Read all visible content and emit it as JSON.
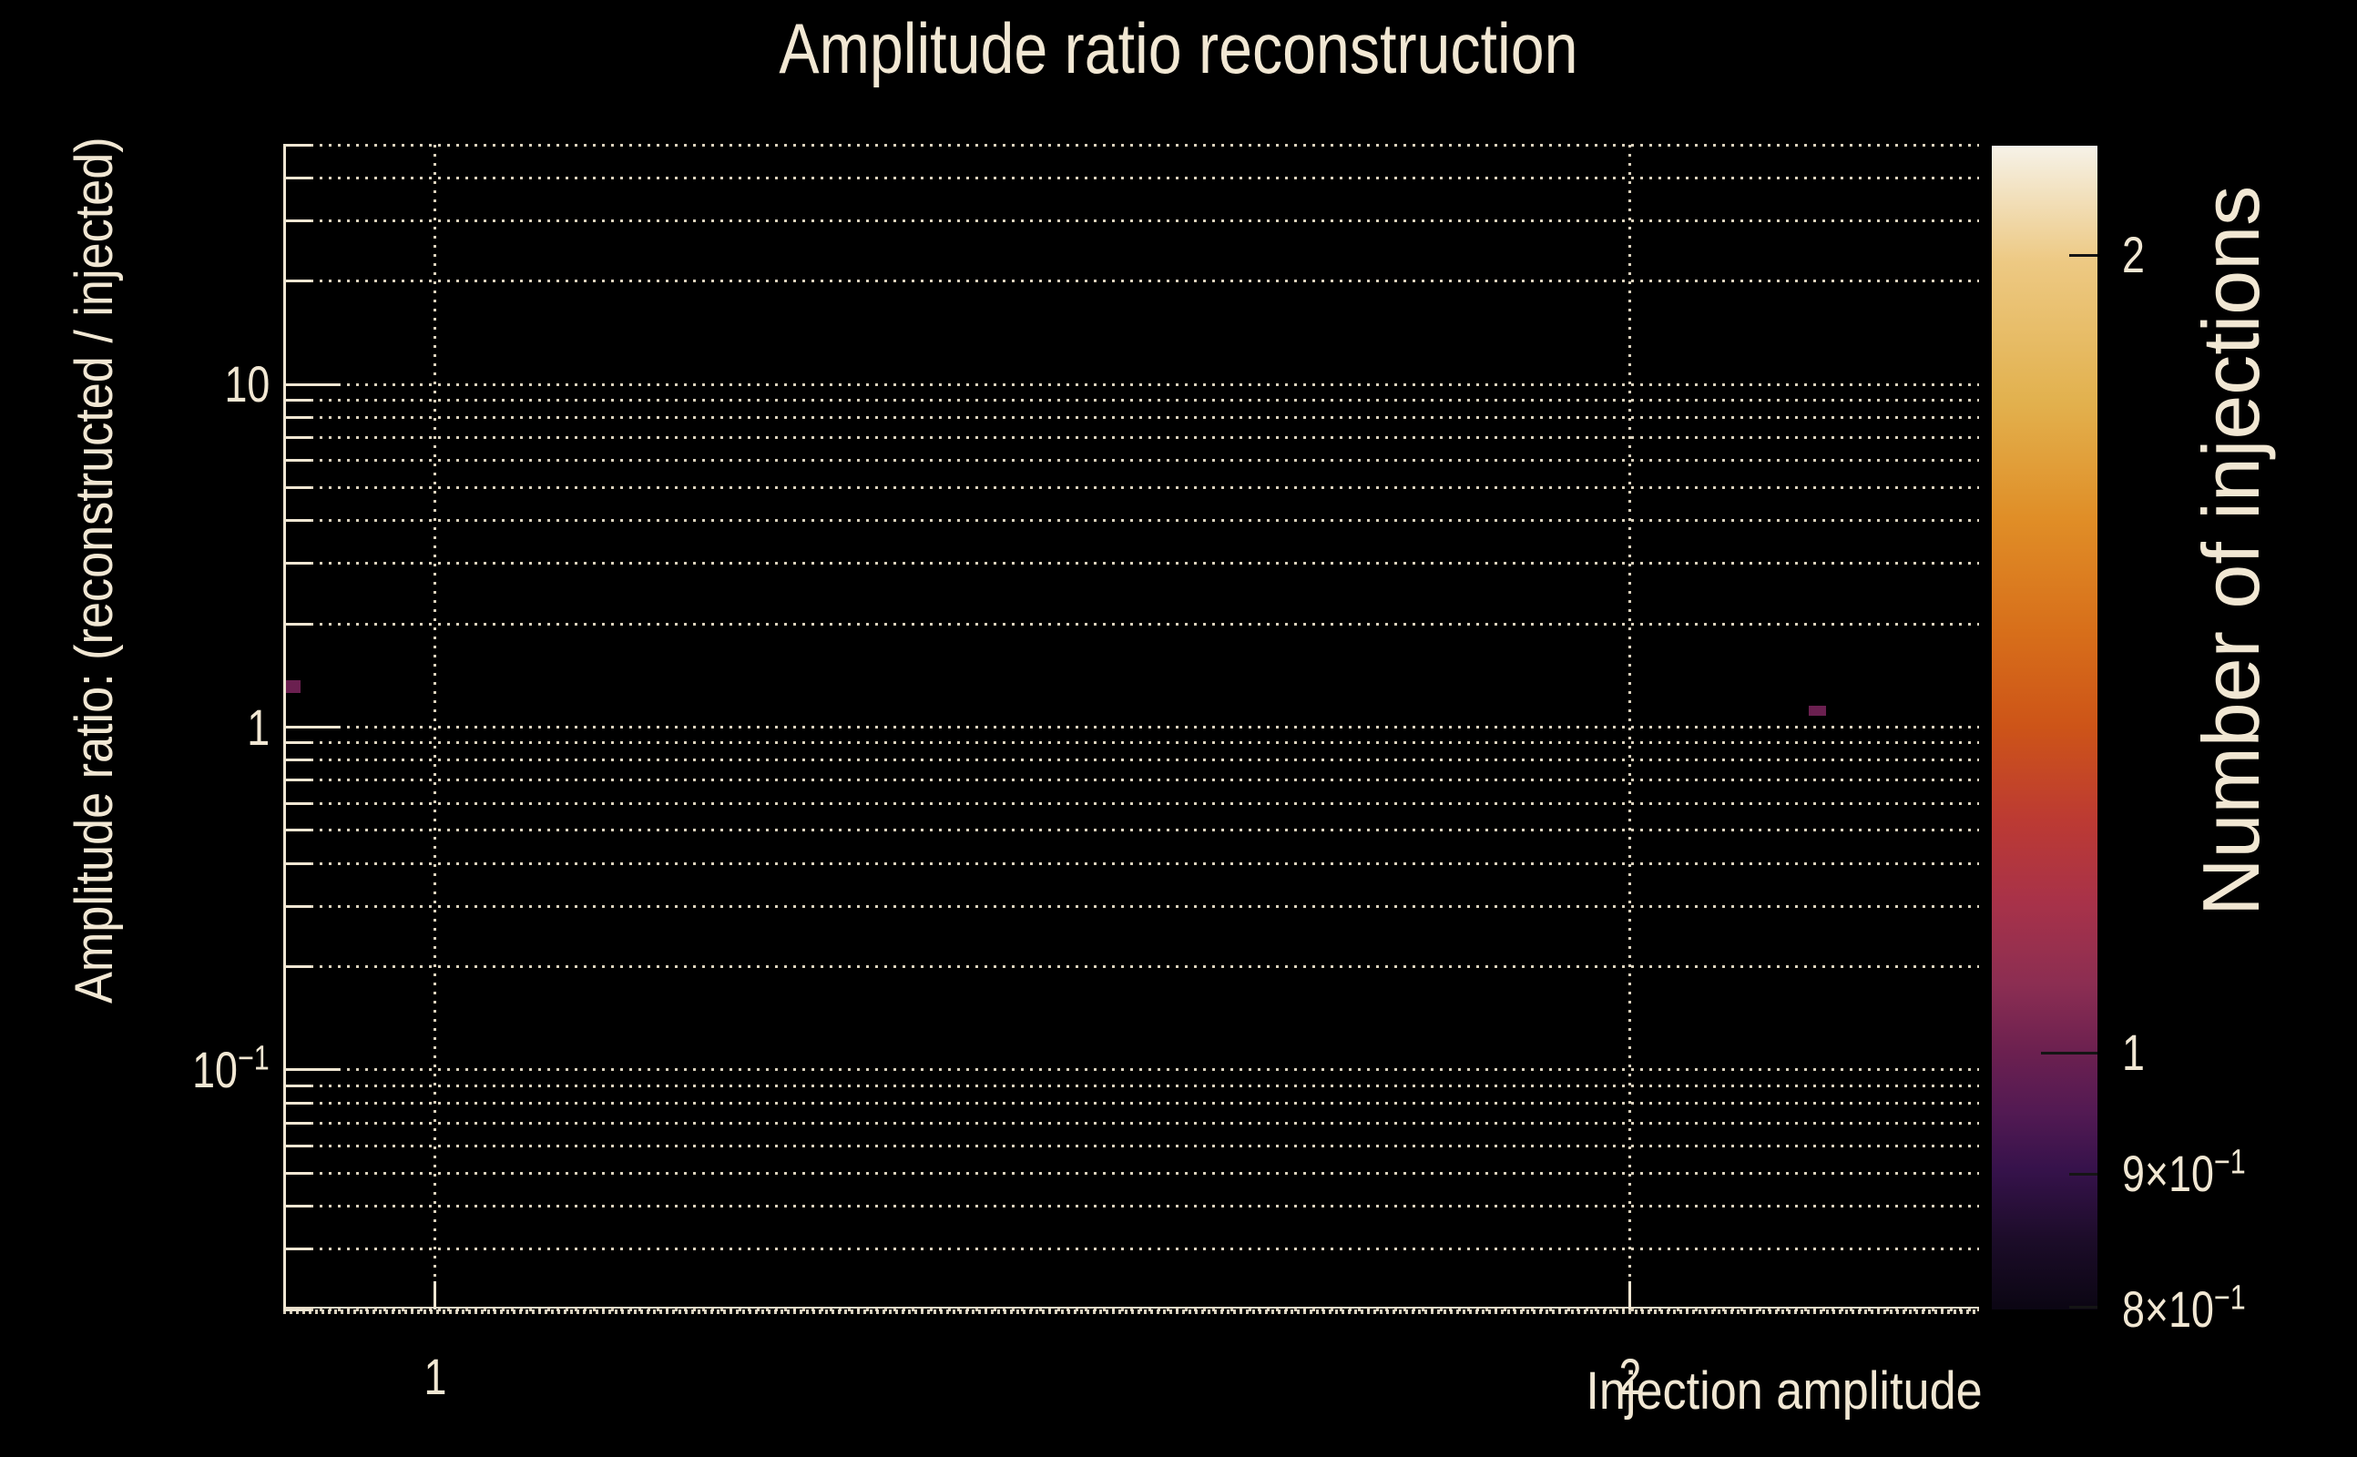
{
  "chart_data": {
    "type": "heatmap",
    "title": "Amplitude ratio reconstruction",
    "xlabel": "Injection amplitude",
    "ylabel": "Amplitude ratio: (reconstructed / injected)",
    "xscale": "log",
    "yscale": "log",
    "xlim": [
      0.9158,
      2.4489
    ],
    "ylim": [
      0.02,
      50
    ],
    "grid": "dotted, both major and minor",
    "xticks": [
      {
        "value": 1,
        "label": "1",
        "sup": "",
        "major": true
      },
      {
        "value": 2,
        "label": "2",
        "sup": "",
        "major": false
      }
    ],
    "yticks": [
      {
        "value": 10,
        "label": "10",
        "sup": ""
      },
      {
        "value": 1,
        "label": "1",
        "sup": ""
      },
      {
        "value": 0.1,
        "label": "10",
        "sup": "−1"
      }
    ],
    "x_gridlines": [
      1,
      2
    ],
    "y_gridlines": [
      50,
      40,
      30,
      20,
      10,
      9,
      8,
      7,
      6,
      5,
      4,
      3,
      2,
      1,
      0.9,
      0.8,
      0.7,
      0.6,
      0.5,
      0.4,
      0.3,
      0.2,
      0.1,
      0.09,
      0.08,
      0.07,
      0.06,
      0.05,
      0.04,
      0.03,
      0.02
    ],
    "y_major": [
      10,
      1,
      0.1
    ],
    "cells": [
      {
        "x": [
          0.916,
          0.925
        ],
        "y": [
          1.261,
          1.374
        ],
        "count": 1
      },
      {
        "x": [
          2.218,
          2.241
        ],
        "y": [
          1.077,
          1.158
        ],
        "count": 1
      }
    ],
    "colorbar": {
      "label": "Number of injections",
      "scale": "log",
      "range": [
        0.8,
        2.2
      ],
      "ticks": [
        {
          "value": 2,
          "label": "2",
          "sup": "",
          "major": false
        },
        {
          "value": 1,
          "label": "1",
          "sup": "",
          "major": true
        },
        {
          "value": 0.9,
          "label": "9×10",
          "sup": "−1",
          "major": false
        },
        {
          "value": 0.8,
          "label": "8×10",
          "sup": "−1",
          "major": false
        }
      ],
      "gradient": [
        {
          "t": 0.0,
          "color": "#0b0613"
        },
        {
          "t": 0.06,
          "color": "#1c0c29"
        },
        {
          "t": 0.12,
          "color": "#36124b"
        },
        {
          "t": 0.17,
          "color": "#531a53"
        },
        {
          "t": 0.22,
          "color": "#6b2050"
        },
        {
          "t": 0.28,
          "color": "#8c2e52"
        },
        {
          "t": 0.35,
          "color": "#a83249"
        },
        {
          "t": 0.42,
          "color": "#bc3a33"
        },
        {
          "t": 0.5,
          "color": "#cd5418"
        },
        {
          "t": 0.58,
          "color": "#d76e1a"
        },
        {
          "t": 0.68,
          "color": "#e08e27"
        },
        {
          "t": 0.78,
          "color": "#e2b14e"
        },
        {
          "t": 0.9,
          "color": "#edc983"
        },
        {
          "t": 1.0,
          "color": "#f6f2e8"
        }
      ]
    },
    "colors": {
      "background": "#000000",
      "text": "#f1e7d3",
      "axis": "#f0e6d2",
      "grid": "#eee4cd",
      "colorbar_tick": "#151515"
    }
  }
}
